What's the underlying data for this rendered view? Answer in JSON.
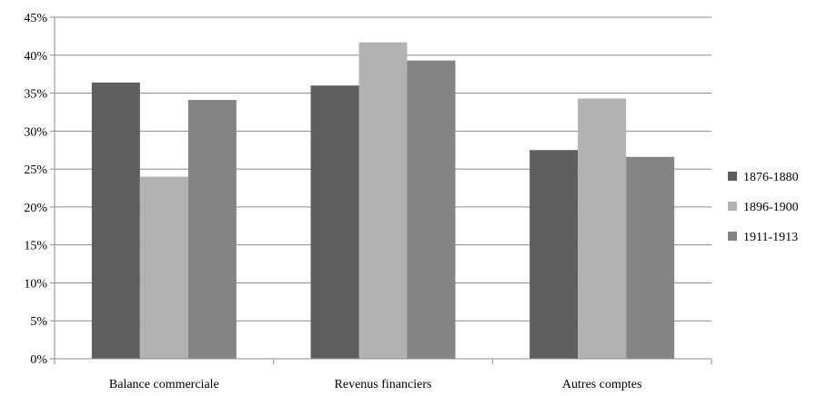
{
  "chart_data": {
    "type": "bar",
    "title": "",
    "xlabel": "",
    "ylabel": "",
    "categories": [
      "Balance commerciale",
      "Revenus financiers",
      "Autres comptes"
    ],
    "series": [
      {
        "name": "1876-1880",
        "color": "#5e5e5e",
        "values": [
          36.4,
          36.0,
          27.5
        ]
      },
      {
        "name": "1896-1900",
        "color": "#b2b2b2",
        "values": [
          24.0,
          41.7,
          34.3
        ]
      },
      {
        "name": "1911-1913",
        "color": "#848484",
        "values": [
          34.1,
          39.3,
          26.6
        ]
      }
    ],
    "ylim": [
      0,
      45
    ],
    "ytick_step": 5,
    "ytick_labels": [
      "0%",
      "5%",
      "10%",
      "15%",
      "20%",
      "25%",
      "30%",
      "35%",
      "40%",
      "45%"
    ],
    "grid": true,
    "legend_position": "right"
  }
}
